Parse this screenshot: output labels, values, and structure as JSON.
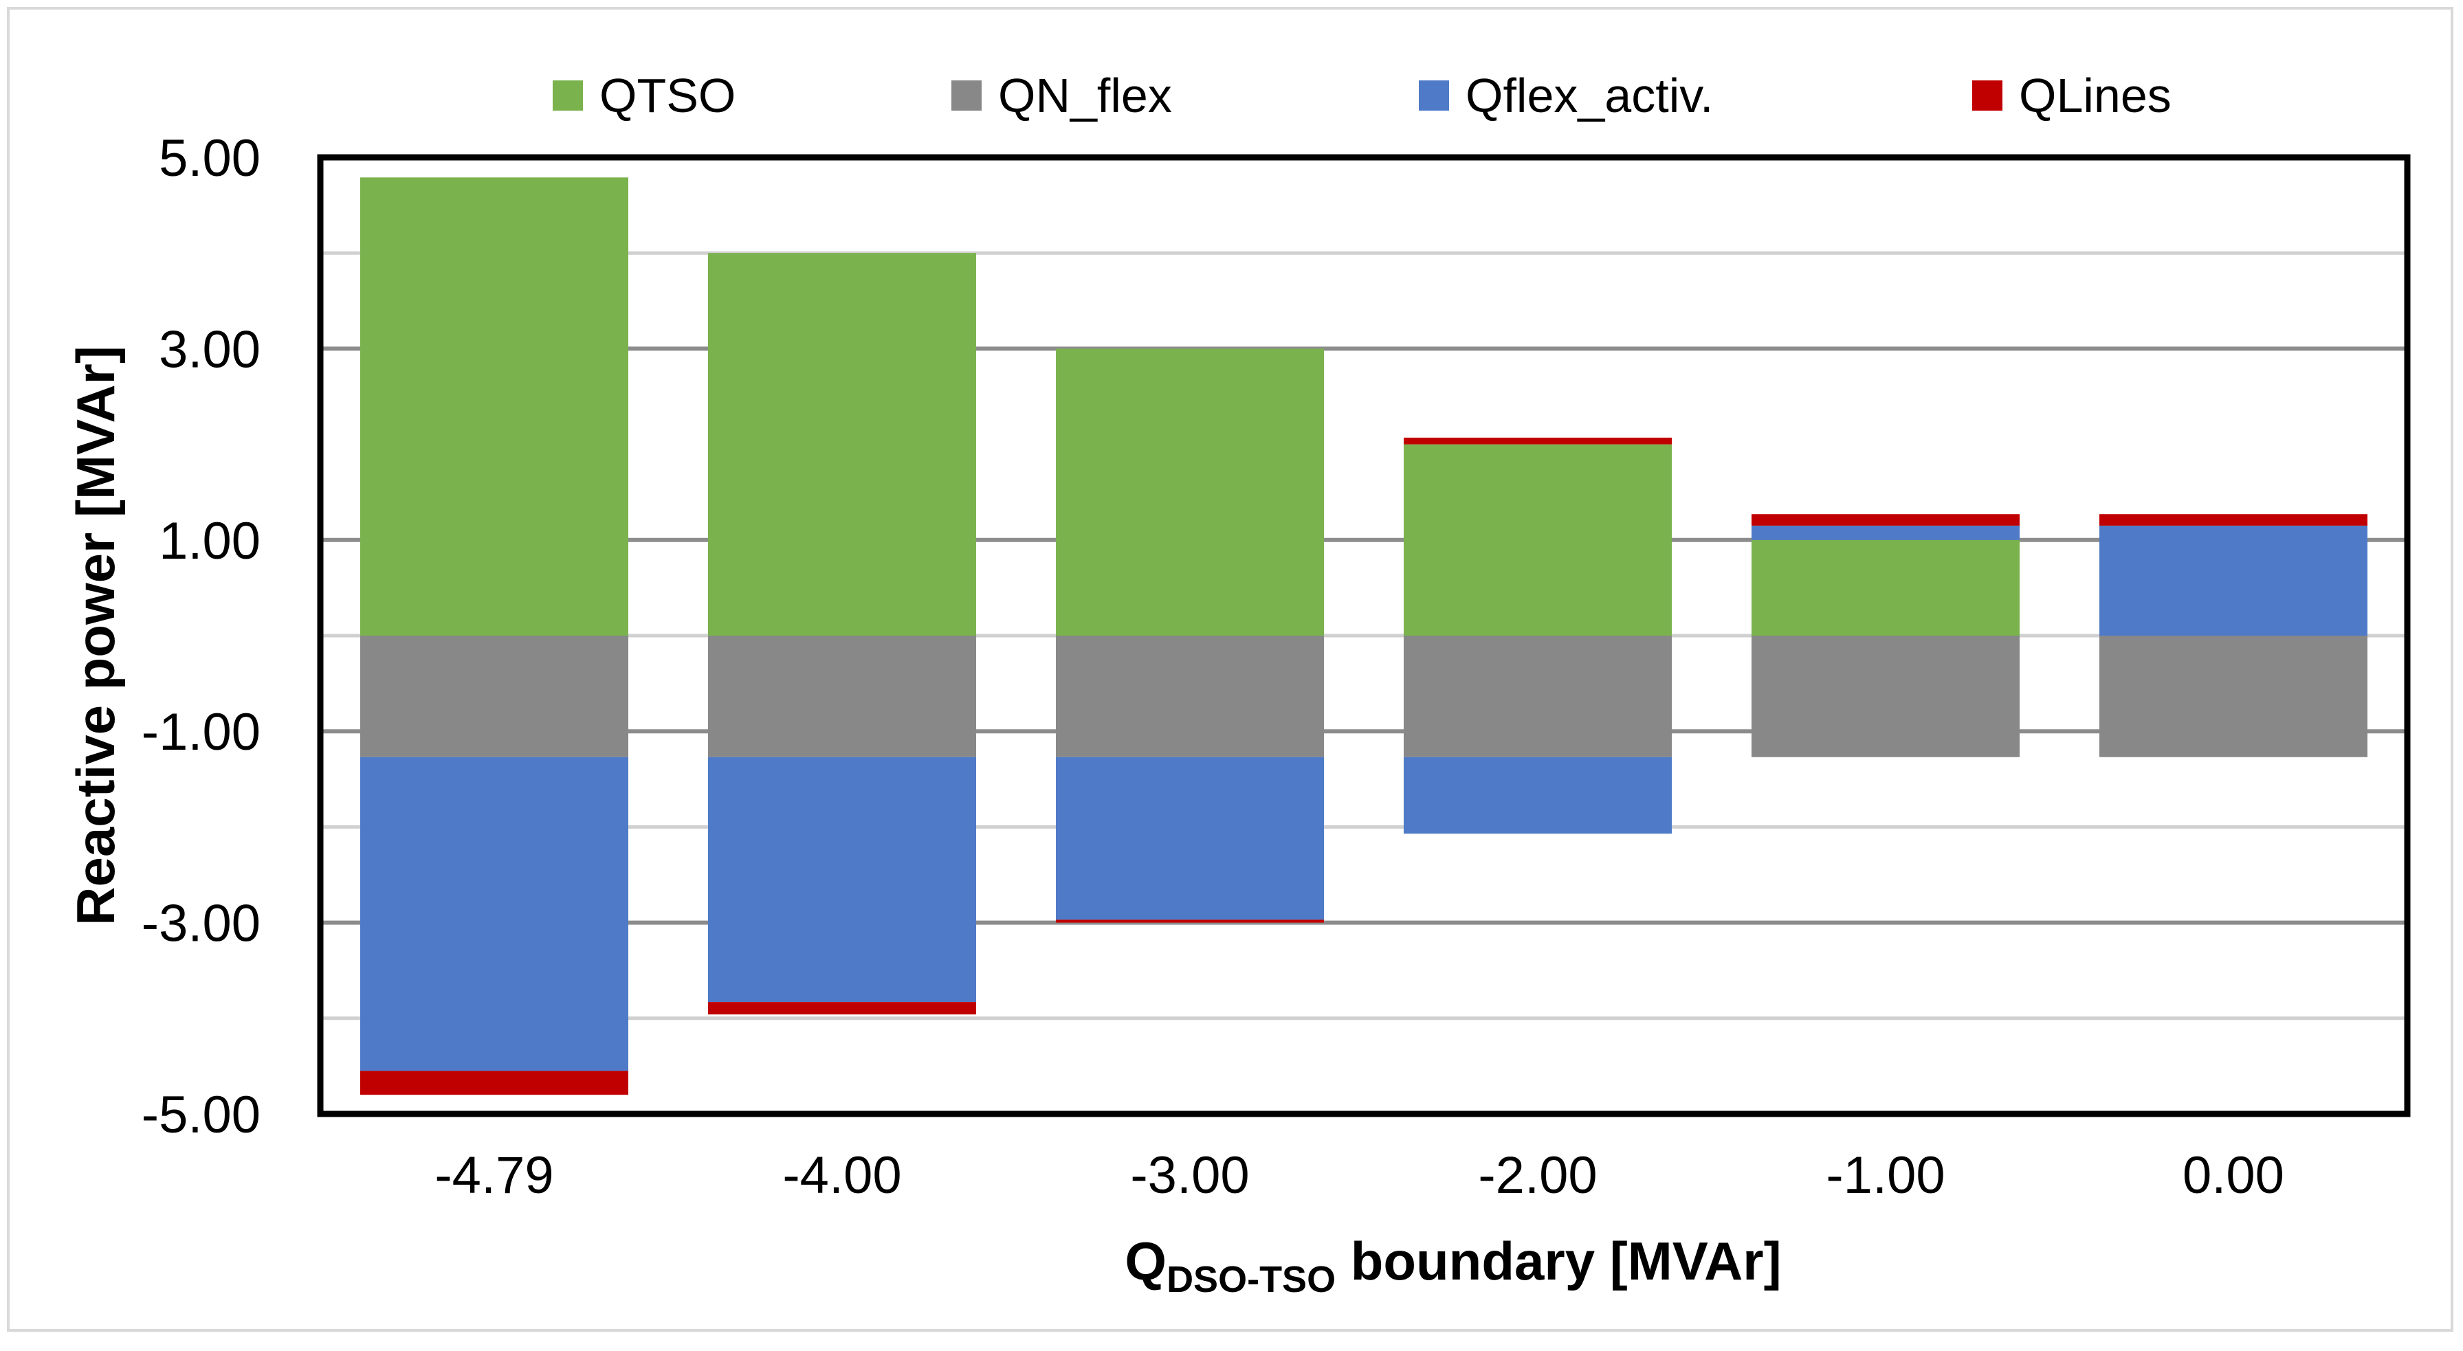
{
  "chart_data": {
    "type": "bar",
    "stacked": true,
    "categories": [
      "-4.79",
      "-4.00",
      "-3.00",
      "-2.00",
      "-1.00",
      "0.00"
    ],
    "series": [
      {
        "name": "QTSO",
        "color": "#7ab24d",
        "values": [
          4.79,
          4.0,
          3.0,
          2.0,
          1.0,
          0.0
        ]
      },
      {
        "name": "QN_flex",
        "color": "#888888",
        "values": [
          -1.27,
          -1.27,
          -1.27,
          -1.27,
          -1.27,
          -1.27
        ]
      },
      {
        "name": "Qflex_activ.",
        "color": "#4f7ac7",
        "values": [
          -3.28,
          -2.56,
          -1.7,
          -0.8,
          0.15,
          1.15
        ]
      },
      {
        "name": "QLines",
        "color": "#c00000",
        "values": [
          -0.25,
          -0.13,
          -0.03,
          0.07,
          0.12,
          0.12
        ]
      }
    ],
    "ylim": [
      -5,
      5
    ],
    "yticks": [
      "5.00",
      "3.00",
      "1.00",
      "-1.00",
      "-3.00",
      "-5.00"
    ],
    "ytick_values": [
      5,
      3,
      1,
      -1,
      -3,
      -5
    ],
    "minor_gridlines": [
      4,
      0,
      -2,
      -4
    ],
    "ylabel": "Reactive power  [MVAr]",
    "xlabel": {
      "main": "Q",
      "subscript": "DSO-TSO",
      "rest": " boundary [MVAr]"
    },
    "legend_position": "top",
    "grid": true
  }
}
